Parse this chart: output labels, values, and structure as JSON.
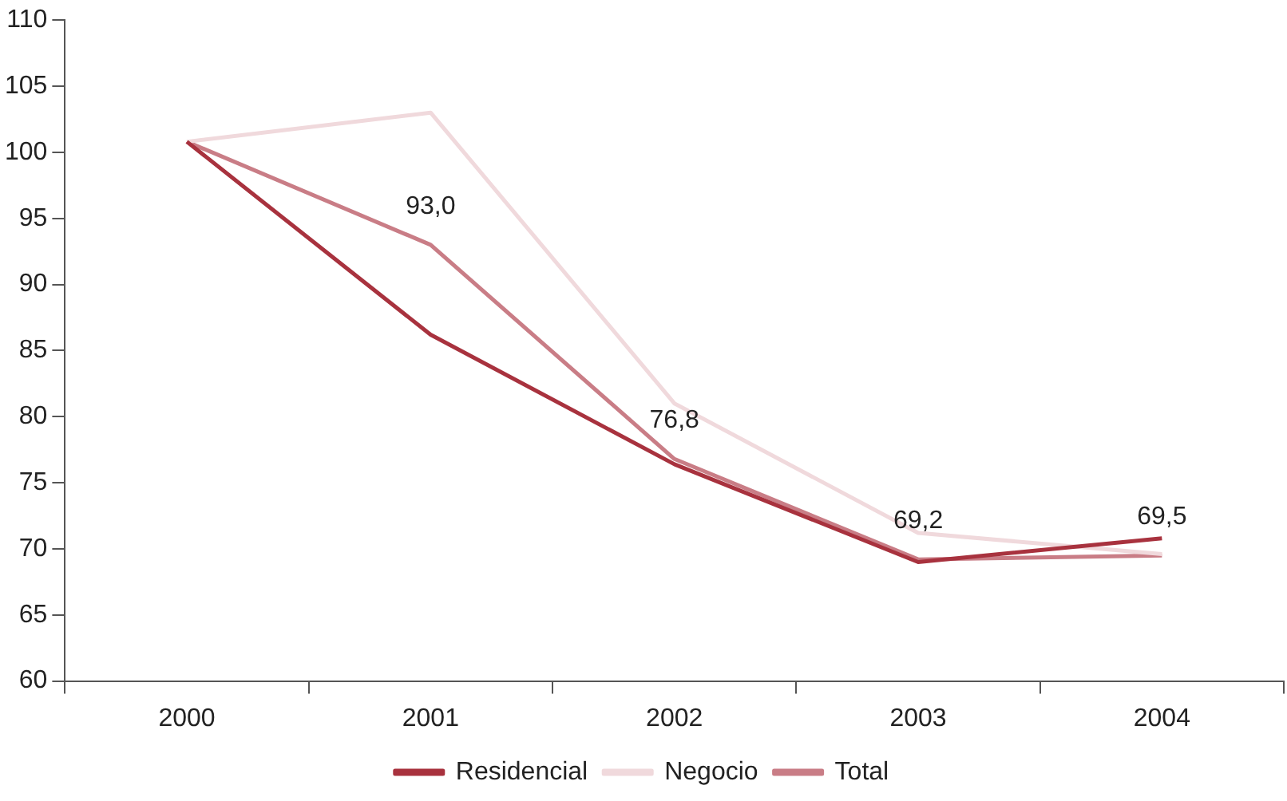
{
  "chart_data": {
    "type": "line",
    "categories": [
      "2000",
      "2001",
      "2002",
      "2003",
      "2004"
    ],
    "series": [
      {
        "name": "Residencial",
        "color": "#a8323e",
        "values": [
          100.8,
          86.2,
          76.4,
          69.0,
          70.8
        ]
      },
      {
        "name": "Negocio",
        "color": "#f0d9dc",
        "values": [
          100.8,
          103.0,
          81.0,
          71.2,
          69.6
        ]
      },
      {
        "name": "Total",
        "color": "#c97d86",
        "values": [
          100.8,
          93.0,
          76.8,
          69.2,
          69.5
        ],
        "value_labels": [
          null,
          "93,0",
          "76,8",
          "69,2",
          "69,5"
        ]
      }
    ],
    "ylim": [
      60,
      110
    ],
    "yticks": [
      60,
      65,
      70,
      75,
      80,
      85,
      90,
      95,
      100,
      105,
      110
    ],
    "grid": false,
    "legend": "bottom",
    "marker": "none",
    "line_style": "solid"
  }
}
